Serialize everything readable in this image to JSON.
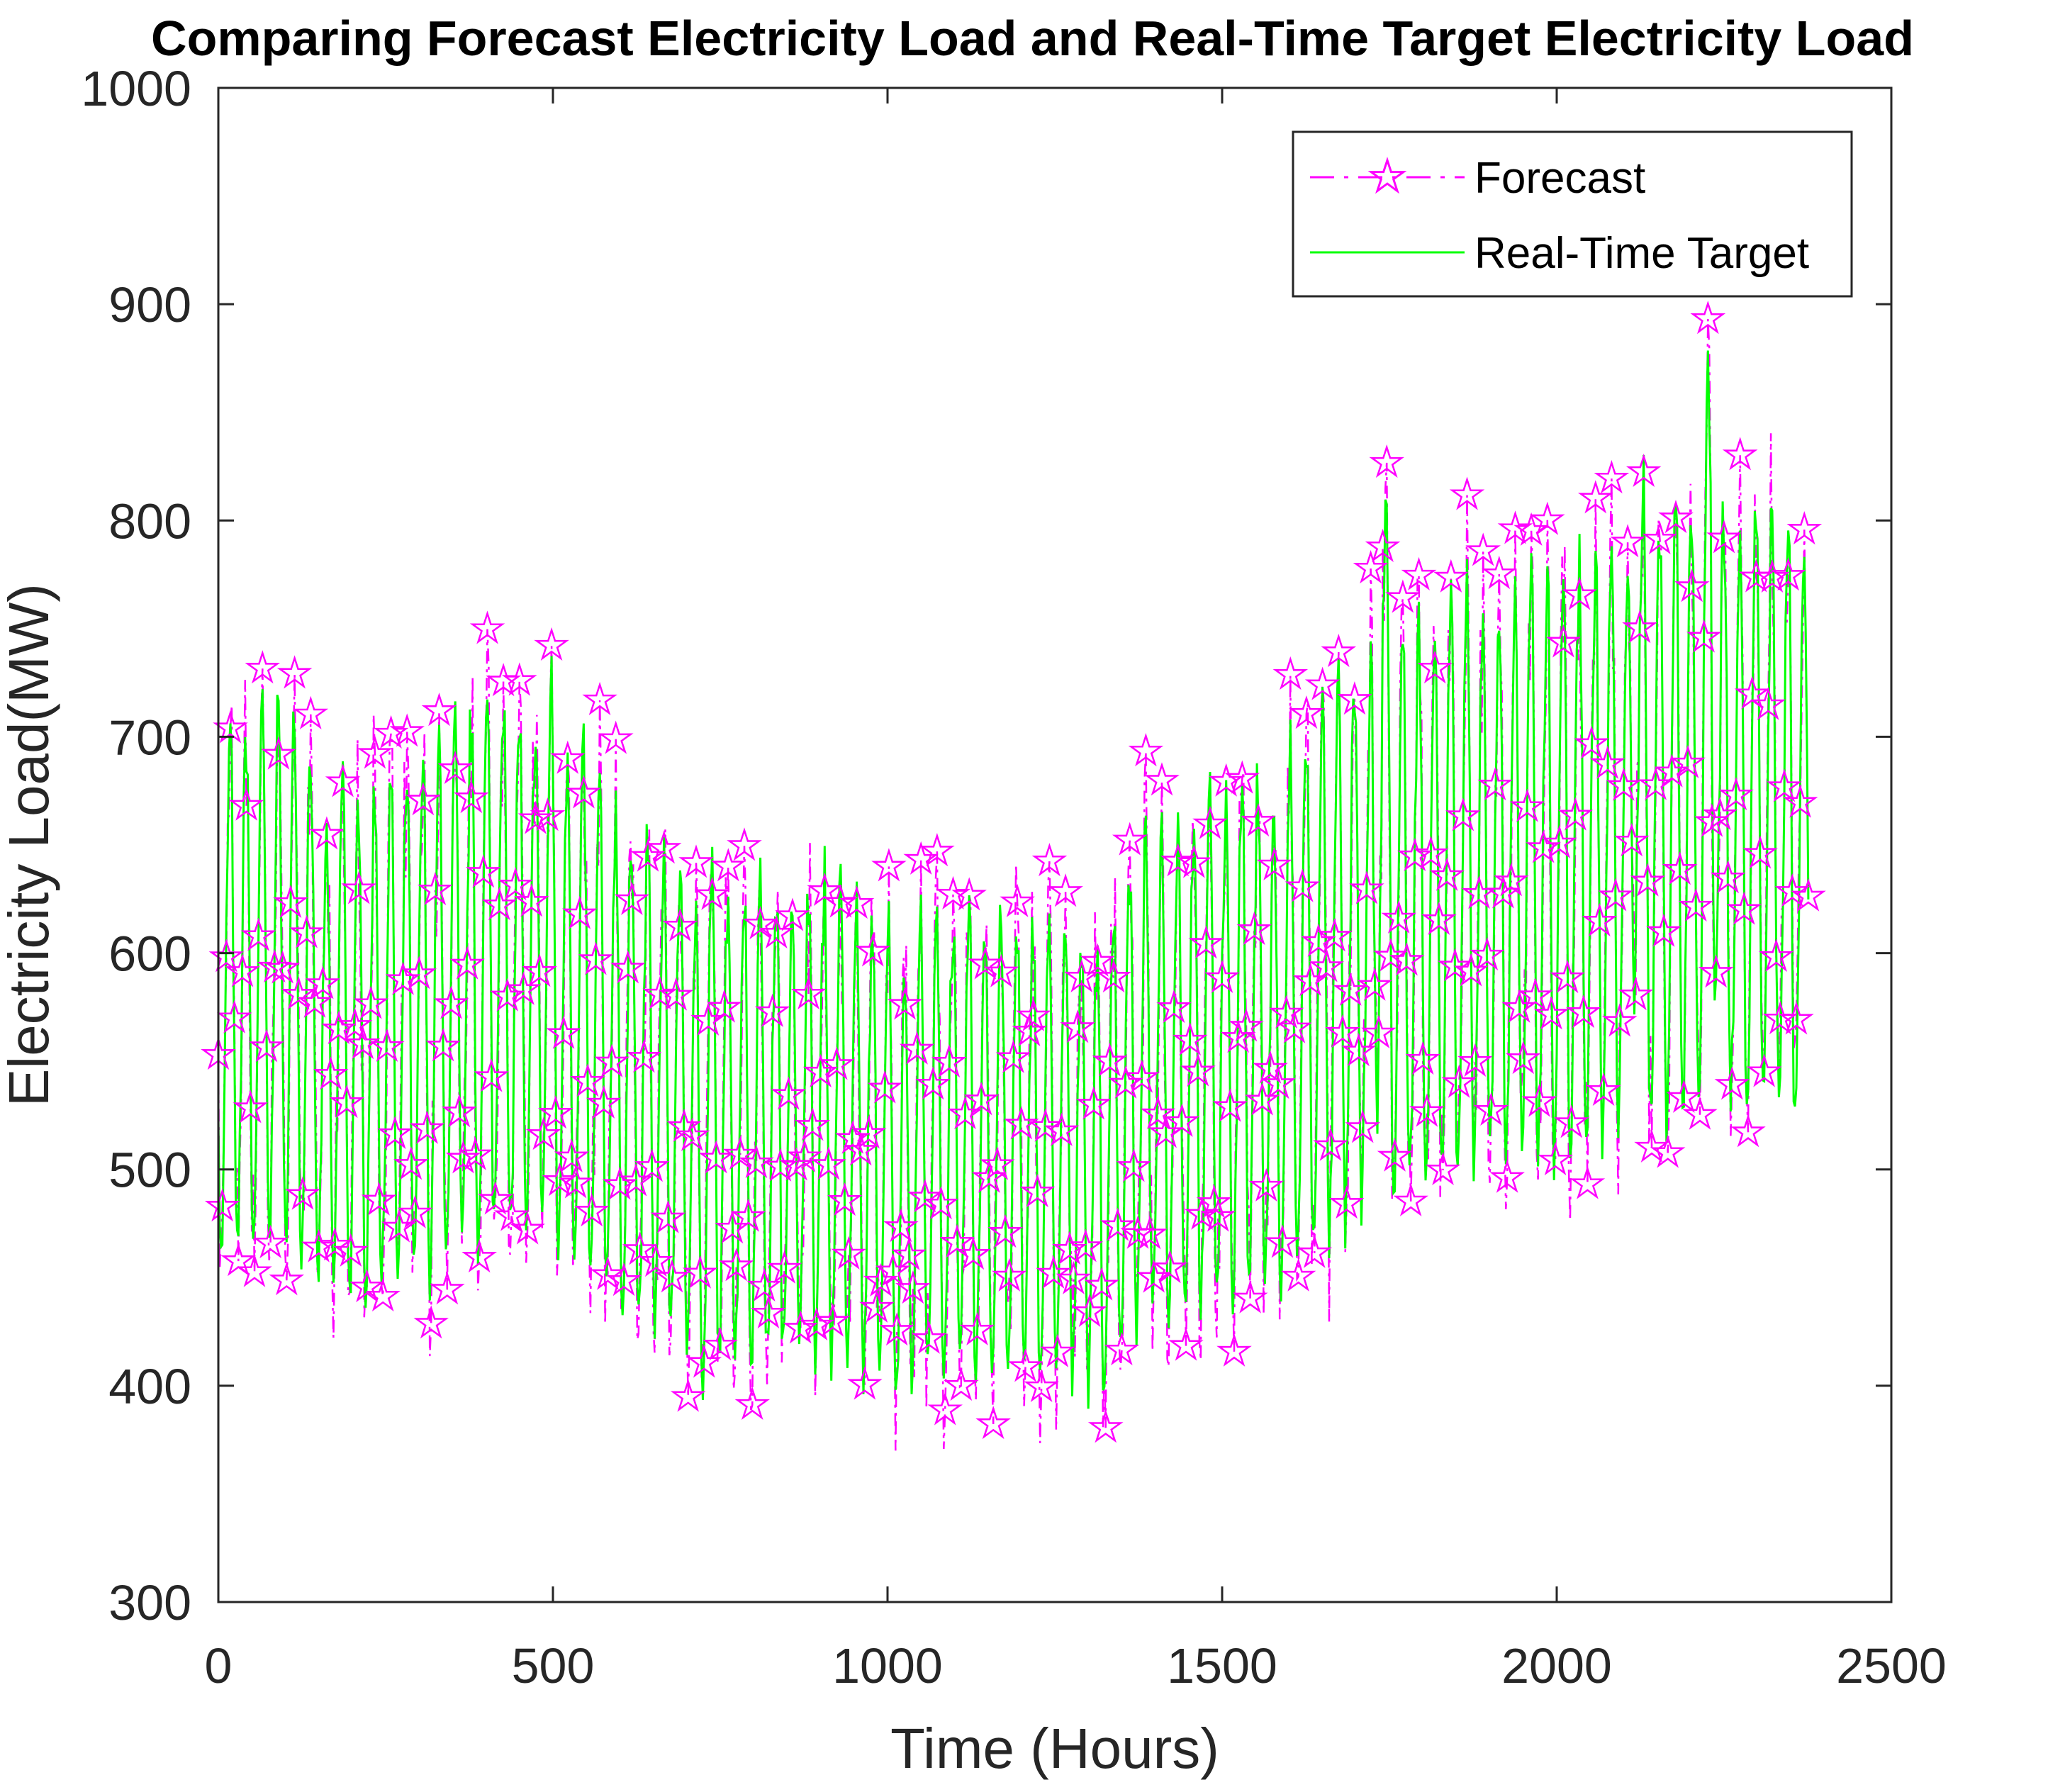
{
  "chart_data": {
    "type": "line",
    "title": "Comparing Forecast Electricity Load and  Real-Time Target Electricity Load",
    "xlabel": "Time (Hours)",
    "ylabel": "Electricity Load(MW)",
    "xlim": [
      0,
      2500
    ],
    "ylim": [
      300,
      1000
    ],
    "xticks": [
      0,
      500,
      1000,
      1500,
      2000,
      2500
    ],
    "yticks": [
      300,
      400,
      500,
      600,
      700,
      800,
      900,
      1000
    ],
    "grid": false,
    "legend_position": "top-right",
    "series": [
      {
        "name": "Forecast",
        "style": "dash-dot line with pentagram markers",
        "color": "#FF00FF",
        "sampling": "one point every 2 hours (estimated from plot)",
        "x_start": 0,
        "x_end": 2376
      },
      {
        "name": "Real-Time Target",
        "style": "solid line",
        "color": "#00FF00",
        "sampling": "one point every 2 hours (estimated from plot)",
        "x_start": 0,
        "x_end": 2376
      }
    ],
    "daily_pattern": {
      "period_hours": 24,
      "low_hour": 4,
      "high_hour": 18,
      "low_fraction_of_mean": 0.75,
      "high_fraction_of_mean": 1.14
    },
    "mean_level_trend": [
      {
        "x": 0,
        "y": 610
      },
      {
        "x": 100,
        "y": 625
      },
      {
        "x": 200,
        "y": 590
      },
      {
        "x": 300,
        "y": 600
      },
      {
        "x": 400,
        "y": 625
      },
      {
        "x": 500,
        "y": 620
      },
      {
        "x": 600,
        "y": 580
      },
      {
        "x": 700,
        "y": 560
      },
      {
        "x": 800,
        "y": 550
      },
      {
        "x": 900,
        "y": 555
      },
      {
        "x": 1000,
        "y": 535
      },
      {
        "x": 1100,
        "y": 540
      },
      {
        "x": 1200,
        "y": 540
      },
      {
        "x": 1300,
        "y": 535
      },
      {
        "x": 1400,
        "y": 575
      },
      {
        "x": 1500,
        "y": 590
      },
      {
        "x": 1600,
        "y": 605
      },
      {
        "x": 1700,
        "y": 640
      },
      {
        "x": 1800,
        "y": 660
      },
      {
        "x": 1900,
        "y": 670
      },
      {
        "x": 2000,
        "y": 680
      },
      {
        "x": 2100,
        "y": 690
      },
      {
        "x": 2200,
        "y": 710
      },
      {
        "x": 2300,
        "y": 705
      },
      {
        "x": 2376,
        "y": 690
      }
    ],
    "notable_points": [
      {
        "x": 95,
        "y": 712
      },
      {
        "x": 160,
        "y": 410
      },
      {
        "x": 420,
        "y": 733
      },
      {
        "x": 490,
        "y": 735
      },
      {
        "x": 720,
        "y": 382
      },
      {
        "x": 1020,
        "y": 380
      },
      {
        "x": 1320,
        "y": 380
      },
      {
        "x": 1580,
        "y": 420
      },
      {
        "x": 1740,
        "y": 845
      },
      {
        "x": 2120,
        "y": 865
      },
      {
        "x": 2230,
        "y": 905
      }
    ]
  },
  "legend": {
    "forecast_label": "Forecast",
    "target_label": "Real-Time Target"
  }
}
